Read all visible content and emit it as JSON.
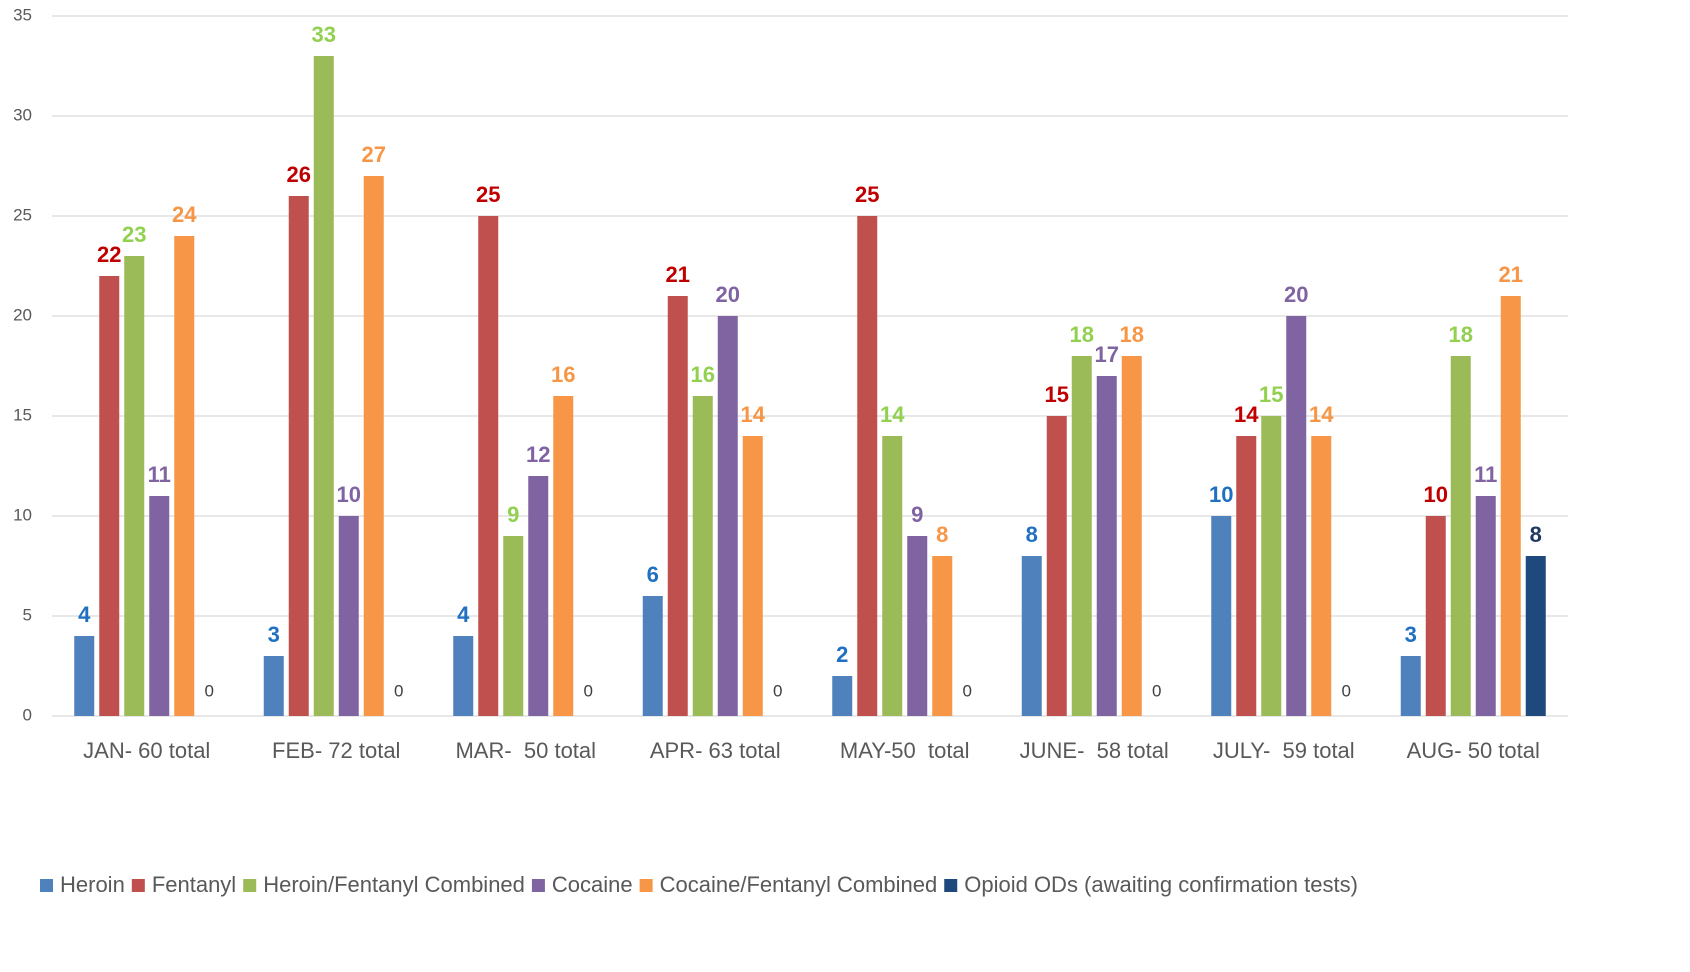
{
  "chart_data": {
    "type": "bar",
    "categories": [
      "JAN- 60 total",
      "FEB- 72 total",
      "MAR-  50 total",
      "APR- 63 total",
      "MAY-50  total",
      "JUNE-  58 total",
      "JULY-  59 total",
      "AUG- 50 total"
    ],
    "series": [
      {
        "name": "Heroin",
        "color": "#4f81bd",
        "label_color": "#1f70c1",
        "values": [
          4,
          3,
          4,
          6,
          2,
          8,
          10,
          3
        ]
      },
      {
        "name": "Fentanyl",
        "color": "#c0504d",
        "label_color": "#c00000",
        "values": [
          22,
          26,
          25,
          21,
          25,
          15,
          14,
          10
        ]
      },
      {
        "name": "Heroin/Fentanyl Combined",
        "color": "#9bbb59",
        "label_color": "#92d050",
        "values": [
          23,
          33,
          9,
          16,
          14,
          18,
          15,
          18
        ]
      },
      {
        "name": "Cocaine",
        "color": "#8064a2",
        "label_color": "#8064a2",
        "values": [
          11,
          10,
          12,
          20,
          9,
          17,
          20,
          11
        ]
      },
      {
        "name": "Cocaine/Fentanyl Combined",
        "color": "#f79646",
        "label_color": "#f79646",
        "values": [
          24,
          27,
          16,
          14,
          8,
          18,
          14,
          21
        ]
      },
      {
        "name": "Opioid ODs (awaiting confirmation tests)",
        "color": "#1f497d",
        "label_color": "#1f3864",
        "values": [
          0,
          0,
          0,
          0,
          0,
          0,
          0,
          8
        ]
      }
    ],
    "ylim": [
      0,
      35
    ],
    "yticks": [
      0,
      5,
      10,
      15,
      20,
      25,
      30,
      35
    ],
    "grid": true,
    "legend": "bottom"
  }
}
